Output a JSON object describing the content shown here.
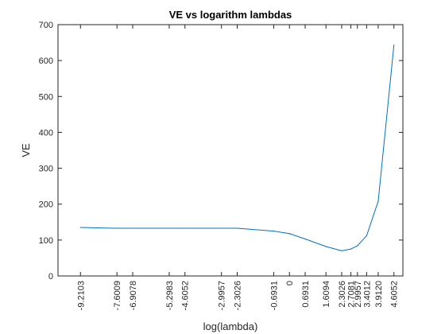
{
  "chart_data": {
    "type": "line",
    "title": "VE vs logarithm lambdas",
    "xlabel": "log(lambda)",
    "ylabel": "VE",
    "xlim": [
      -10.2,
      5.0
    ],
    "ylim": [
      0,
      700
    ],
    "grid": false,
    "y_ticks": [
      0,
      100,
      200,
      300,
      400,
      500,
      600,
      700
    ],
    "x_ticks": [
      {
        "value": -9.2103,
        "label": "-9.2103"
      },
      {
        "value": -7.6009,
        "label": "-7.6009"
      },
      {
        "value": -6.9078,
        "label": "-6.9078"
      },
      {
        "value": -5.2983,
        "label": "-5.2983"
      },
      {
        "value": -4.6052,
        "label": "-4.6052"
      },
      {
        "value": -2.9957,
        "label": "-2.9957"
      },
      {
        "value": -2.3026,
        "label": "-2.3026"
      },
      {
        "value": -0.6931,
        "label": "-0.6931"
      },
      {
        "value": 0,
        "label": "0"
      },
      {
        "value": 0.6931,
        "label": "0.6931"
      },
      {
        "value": 1.6094,
        "label": "1.6094"
      },
      {
        "value": 2.3026,
        "label": "2.3026"
      },
      {
        "value": 2.7081,
        "label": "2.7081"
      },
      {
        "value": 2.9957,
        "label": "2.9957"
      },
      {
        "value": 3.4012,
        "label": "3.4012"
      },
      {
        "value": 3.912,
        "label": "3.9120"
      },
      {
        "value": 4.6052,
        "label": "4.6052"
      }
    ],
    "series": [
      {
        "color": "#0072bd",
        "x": [
          -9.2103,
          -7.6009,
          -6.9078,
          -5.2983,
          -4.6052,
          -2.9957,
          -2.3026,
          -0.6931,
          0,
          0.6931,
          1.6094,
          2.3026,
          2.7081,
          2.9957,
          3.4012,
          3.912,
          4.6052
        ],
        "y": [
          135,
          133,
          133,
          133,
          133,
          133,
          133,
          125,
          118,
          103,
          82,
          70,
          75,
          84,
          112,
          208,
          643
        ]
      }
    ]
  }
}
